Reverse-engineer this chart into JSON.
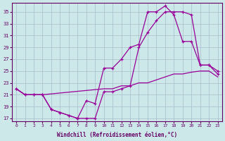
{
  "bg_color": "#cce8e8",
  "grid_color": "#aabbcc",
  "line_color": "#990099",
  "xlabel": "Windchill (Refroidissement éolien,°C)",
  "xlim": [
    -0.5,
    23.5
  ],
  "ylim": [
    16.5,
    36.5
  ],
  "yticks": [
    17,
    19,
    21,
    23,
    25,
    27,
    29,
    31,
    33,
    35
  ],
  "xticks": [
    0,
    1,
    2,
    3,
    4,
    5,
    6,
    7,
    8,
    9,
    10,
    11,
    12,
    13,
    14,
    15,
    16,
    17,
    18,
    19,
    20,
    21,
    22,
    23
  ],
  "curve1_x": [
    0,
    1,
    2,
    3,
    4,
    5,
    6,
    7,
    8,
    9,
    10,
    11,
    12,
    13,
    14,
    15,
    16,
    17,
    18,
    19,
    20,
    21,
    22,
    23
  ],
  "curve1_y": [
    22,
    21,
    21,
    21,
    18.5,
    18,
    17.5,
    17,
    17,
    17,
    21.5,
    21.5,
    22,
    22.5,
    29,
    31.5,
    33.5,
    35,
    35,
    35,
    34.5,
    26,
    26,
    25
  ],
  "curve2_x": [
    0,
    1,
    2,
    3,
    4,
    5,
    6,
    7,
    8,
    9,
    10,
    11,
    12,
    13,
    14,
    15,
    16,
    17,
    18,
    19,
    20,
    21,
    22,
    23
  ],
  "curve2_y": [
    22,
    21,
    21,
    21,
    18.5,
    18,
    17.5,
    17,
    20,
    19.5,
    25.5,
    25.5,
    27,
    29,
    29.5,
    35,
    35,
    36,
    34.5,
    30,
    30,
    26,
    26,
    24.5
  ],
  "curve3_x": [
    0,
    1,
    2,
    3,
    10,
    11,
    12,
    13,
    14,
    15,
    16,
    17,
    18,
    19,
    20,
    21,
    22,
    23
  ],
  "curve3_y": [
    22,
    21,
    21,
    21,
    22,
    22,
    22.5,
    22.5,
    23,
    23,
    23.5,
    24,
    24.5,
    24.5,
    24.8,
    25,
    25,
    24
  ]
}
